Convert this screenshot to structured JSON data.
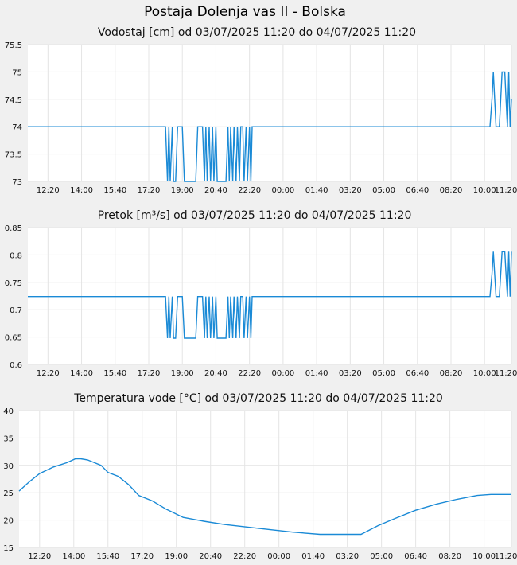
{
  "page_title": "Postaja Dolenja vas II - Bolska",
  "colors": {
    "series": "#1a8ad6",
    "plot_bg": "#ffffff",
    "page_bg": "#f0f0f0",
    "grid": "#e4e4e4"
  },
  "x_ticks": [
    "12:20",
    "14:00",
    "15:40",
    "17:20",
    "19:00",
    "20:40",
    "22:20",
    "00:00",
    "01:40",
    "03:20",
    "05:00",
    "06:40",
    "08:20",
    "10:00",
    "11:20"
  ],
  "chart_data": [
    {
      "type": "line",
      "title": "Vodostaj [cm] od 03/07/2025 11:20 do 04/07/2025 11:20",
      "xlabel": "",
      "ylabel": "",
      "xlim": [
        0,
        1440
      ],
      "ylim": [
        73,
        75.5
      ],
      "y_ticks": [
        "73",
        "73.5",
        "74",
        "74.5",
        "75",
        "75.5"
      ],
      "grid": true,
      "series": [
        {
          "values": [
            [
              0,
              74
            ],
            [
              410,
              74
            ],
            [
              416,
              73
            ],
            [
              420,
              74
            ],
            [
              424,
              73
            ],
            [
              430,
              74
            ],
            [
              434,
              73
            ],
            [
              440,
              73
            ],
            [
              446,
              74
            ],
            [
              460,
              74
            ],
            [
              466,
              73
            ],
            [
              500,
              73
            ],
            [
              506,
              74
            ],
            [
              520,
              74
            ],
            [
              526,
              73
            ],
            [
              530,
              74
            ],
            [
              534,
              73
            ],
            [
              540,
              74
            ],
            [
              544,
              73
            ],
            [
              550,
              74
            ],
            [
              554,
              73
            ],
            [
              560,
              74
            ],
            [
              564,
              73
            ],
            [
              590,
              73
            ],
            [
              596,
              74
            ],
            [
              600,
              73
            ],
            [
              604,
              74
            ],
            [
              610,
              73
            ],
            [
              614,
              74
            ],
            [
              620,
              73
            ],
            [
              624,
              74
            ],
            [
              630,
              73
            ],
            [
              634,
              74
            ],
            [
              640,
              74
            ],
            [
              644,
              73
            ],
            [
              650,
              74
            ],
            [
              654,
              73
            ],
            [
              660,
              74
            ],
            [
              664,
              73
            ],
            [
              668,
              74
            ],
            [
              900,
              74
            ],
            [
              1376,
              74
            ],
            [
              1382,
              74.5
            ],
            [
              1386,
              75
            ],
            [
              1390,
              74.5
            ],
            [
              1394,
              74
            ],
            [
              1404,
              74
            ],
            [
              1408,
              74.5
            ],
            [
              1412,
              75
            ],
            [
              1420,
              75
            ],
            [
              1424,
              74.5
            ],
            [
              1428,
              74
            ],
            [
              1432,
              75
            ],
            [
              1436,
              74
            ],
            [
              1440,
              74.5
            ]
          ]
        }
      ]
    },
    {
      "type": "line",
      "title": "Pretok [m³/s] od 03/07/2025 11:20 do 04/07/2025 11:20",
      "xlabel": "",
      "ylabel": "",
      "xlim": [
        0,
        1440
      ],
      "ylim": [
        0.6,
        0.85
      ],
      "y_ticks": [
        "0.6",
        "0.65",
        "0.7",
        "0.75",
        "0.8",
        "0.85"
      ],
      "grid": true,
      "series": [
        {
          "values": [
            [
              0,
              0.724
            ],
            [
              410,
              0.724
            ],
            [
              416,
              0.648
            ],
            [
              420,
              0.724
            ],
            [
              424,
              0.648
            ],
            [
              430,
              0.724
            ],
            [
              434,
              0.648
            ],
            [
              440,
              0.648
            ],
            [
              446,
              0.724
            ],
            [
              460,
              0.724
            ],
            [
              466,
              0.648
            ],
            [
              500,
              0.648
            ],
            [
              506,
              0.724
            ],
            [
              520,
              0.724
            ],
            [
              526,
              0.648
            ],
            [
              530,
              0.724
            ],
            [
              534,
              0.648
            ],
            [
              540,
              0.724
            ],
            [
              544,
              0.648
            ],
            [
              550,
              0.724
            ],
            [
              554,
              0.648
            ],
            [
              560,
              0.724
            ],
            [
              564,
              0.648
            ],
            [
              590,
              0.648
            ],
            [
              596,
              0.724
            ],
            [
              600,
              0.648
            ],
            [
              604,
              0.724
            ],
            [
              610,
              0.648
            ],
            [
              614,
              0.724
            ],
            [
              620,
              0.648
            ],
            [
              624,
              0.724
            ],
            [
              630,
              0.648
            ],
            [
              634,
              0.724
            ],
            [
              640,
              0.724
            ],
            [
              644,
              0.648
            ],
            [
              650,
              0.724
            ],
            [
              654,
              0.648
            ],
            [
              660,
              0.724
            ],
            [
              664,
              0.648
            ],
            [
              668,
              0.724
            ],
            [
              900,
              0.724
            ],
            [
              1376,
              0.724
            ],
            [
              1382,
              0.765
            ],
            [
              1386,
              0.806
            ],
            [
              1390,
              0.765
            ],
            [
              1394,
              0.724
            ],
            [
              1404,
              0.724
            ],
            [
              1408,
              0.765
            ],
            [
              1412,
              0.806
            ],
            [
              1420,
              0.806
            ],
            [
              1424,
              0.765
            ],
            [
              1428,
              0.724
            ],
            [
              1432,
              0.806
            ],
            [
              1436,
              0.724
            ],
            [
              1440,
              0.806
            ]
          ]
        }
      ]
    },
    {
      "type": "line",
      "title": "Temperatura vode [°C] od 03/07/2025 11:20 do 04/07/2025 11:20",
      "xlabel": "",
      "ylabel": "",
      "xlim": [
        0,
        1440
      ],
      "ylim": [
        15,
        40
      ],
      "y_ticks": [
        "15",
        "20",
        "25",
        "30",
        "35",
        "40"
      ],
      "grid": true,
      "series": [
        {
          "values": [
            [
              0,
              25.3
            ],
            [
              30,
              27
            ],
            [
              60,
              28.5
            ],
            [
              100,
              29.7
            ],
            [
              140,
              30.5
            ],
            [
              165,
              31.2
            ],
            [
              180,
              31.2
            ],
            [
              200,
              31
            ],
            [
              240,
              30
            ],
            [
              260,
              28.7
            ],
            [
              290,
              28
            ],
            [
              320,
              26.5
            ],
            [
              350,
              24.5
            ],
            [
              390,
              23.5
            ],
            [
              430,
              22
            ],
            [
              480,
              20.5
            ],
            [
              540,
              19.8
            ],
            [
              600,
              19.2
            ],
            [
              700,
              18.5
            ],
            [
              800,
              17.8
            ],
            [
              880,
              17.4
            ],
            [
              940,
              17.4
            ],
            [
              1000,
              17.4
            ],
            [
              1050,
              19
            ],
            [
              1100,
              20.3
            ],
            [
              1160,
              21.8
            ],
            [
              1220,
              22.9
            ],
            [
              1280,
              23.8
            ],
            [
              1340,
              24.5
            ],
            [
              1380,
              24.7
            ],
            [
              1440,
              24.7
            ]
          ]
        }
      ]
    }
  ]
}
